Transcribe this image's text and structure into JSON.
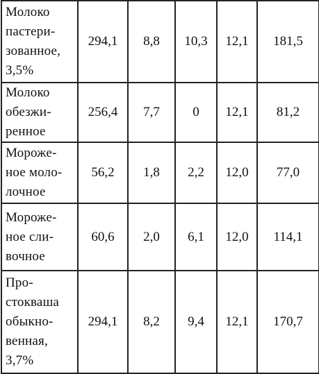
{
  "table": {
    "rows": [
      {
        "label": [
          "Молоко",
          "пастери-",
          "зованное,",
          "3,5%"
        ],
        "cells": [
          "294,1",
          "8,8",
          "10,3",
          "12,1",
          "181,5"
        ]
      },
      {
        "label": [
          "Молоко",
          "обезжи-",
          "ренное"
        ],
        "cells": [
          "256,4",
          "7,7",
          "0",
          "12,1",
          "81,2"
        ]
      },
      {
        "label": [
          "Мороже-",
          "ное моло-",
          "лочное"
        ],
        "cells": [
          "56,2",
          "1,8",
          "2,2",
          "12,0",
          "77,0"
        ]
      },
      {
        "label": [
          "Мороже-",
          "ное сли-",
          "вочное"
        ],
        "cells": [
          "60,6",
          "2,0",
          "6,1",
          "12,0",
          "114,1"
        ]
      },
      {
        "label": [
          "Про-",
          "стокваша",
          "обыкно-",
          "венная,",
          "3,7%"
        ],
        "cells": [
          "294,1",
          "8,2",
          "9,4",
          "12,1",
          "170,7"
        ]
      }
    ]
  }
}
